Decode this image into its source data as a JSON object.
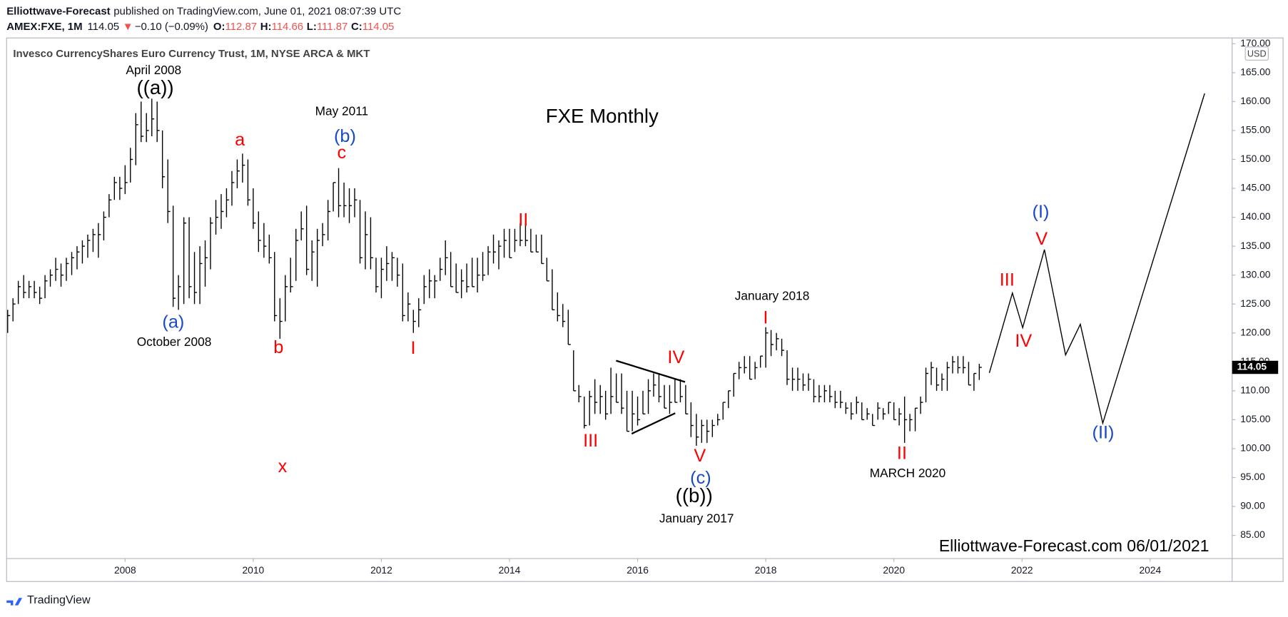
{
  "header": {
    "publisher": "Elliottwave-Forecast",
    "published": "published on TradingView.com, June 01, 2021 08:07:39 UTC",
    "symbol": "AMEX:FXE, 1M",
    "last": "114.05",
    "change_arrow": "▼",
    "change": "−0.10 (−0.09%)",
    "o_label": "O:",
    "open": "112.87",
    "h_label": "H:",
    "high": "114.66",
    "l_label": "L:",
    "low": "111.87",
    "c_label": "C:",
    "close": "114.05"
  },
  "footer": {
    "brand": "TradingView"
  },
  "chart_data": {
    "type": "ohlc",
    "title": "Invesco CurrencyShares Euro Currency Trust, 1M, NYSE ARCA & MKT",
    "watermark": "FXE Monthly",
    "signature": "Elliottwave-Forecast.com 06/01/2021",
    "currency": "USD",
    "color": "#000000",
    "x": [
      2006.167,
      2006.25,
      2006.333,
      2006.417,
      2006.5,
      2006.583,
      2006.667,
      2006.75,
      2006.833,
      2006.917,
      2007,
      2007.083,
      2007.167,
      2007.25,
      2007.333,
      2007.417,
      2007.5,
      2007.583,
      2007.667,
      2007.75,
      2007.833,
      2007.917,
      2008,
      2008.083,
      2008.167,
      2008.25,
      2008.333,
      2008.417,
      2008.5,
      2008.583,
      2008.667,
      2008.75,
      2008.833,
      2008.917,
      2009,
      2009.083,
      2009.167,
      2009.25,
      2009.333,
      2009.417,
      2009.5,
      2009.583,
      2009.667,
      2009.75,
      2009.833,
      2009.917,
      2010,
      2010.083,
      2010.167,
      2010.25,
      2010.333,
      2010.417,
      2010.5,
      2010.583,
      2010.667,
      2010.75,
      2010.833,
      2010.917,
      2011,
      2011.083,
      2011.167,
      2011.25,
      2011.333,
      2011.417,
      2011.5,
      2011.583,
      2011.667,
      2011.75,
      2011.833,
      2011.917,
      2012,
      2012.083,
      2012.167,
      2012.25,
      2012.333,
      2012.417,
      2012.5,
      2012.583,
      2012.667,
      2012.75,
      2012.833,
      2012.917,
      2013,
      2013.083,
      2013.167,
      2013.25,
      2013.333,
      2013.417,
      2013.5,
      2013.583,
      2013.667,
      2013.75,
      2013.833,
      2013.917,
      2014,
      2014.083,
      2014.167,
      2014.25,
      2014.333,
      2014.417,
      2014.5,
      2014.583,
      2014.667,
      2014.75,
      2014.833,
      2014.917,
      2015,
      2015.083,
      2015.167,
      2015.25,
      2015.333,
      2015.417,
      2015.5,
      2015.583,
      2015.667,
      2015.75,
      2015.833,
      2015.917,
      2016,
      2016.083,
      2016.167,
      2016.25,
      2016.333,
      2016.417,
      2016.5,
      2016.583,
      2016.667,
      2016.75,
      2016.833,
      2016.917,
      2017,
      2017.083,
      2017.167,
      2017.25,
      2017.333,
      2017.417,
      2017.5,
      2017.583,
      2017.667,
      2017.75,
      2017.833,
      2017.917,
      2018,
      2018.083,
      2018.167,
      2018.25,
      2018.333,
      2018.417,
      2018.5,
      2018.583,
      2018.667,
      2018.75,
      2018.833,
      2018.917,
      2019,
      2019.083,
      2019.167,
      2019.25,
      2019.333,
      2019.417,
      2019.5,
      2019.583,
      2019.667,
      2019.75,
      2019.833,
      2019.917,
      2020,
      2020.083,
      2020.167,
      2020.25,
      2020.333,
      2020.417,
      2020.5,
      2020.583,
      2020.667,
      2020.75,
      2020.833,
      2020.917,
      2021,
      2021.083,
      2021.167,
      2021.25,
      2021.333
    ],
    "high": [
      124,
      126,
      129,
      130,
      129,
      129,
      128,
      130,
      131,
      133,
      132,
      133,
      134,
      135,
      136,
      137,
      138,
      139,
      141,
      144,
      147,
      147,
      149,
      152,
      158,
      160,
      158,
      160.5,
      160,
      155,
      150,
      142,
      130,
      140,
      140,
      134,
      135,
      136,
      140,
      143,
      144,
      145,
      148,
      150,
      151,
      150,
      145,
      141,
      139,
      137,
      134,
      126,
      130,
      133,
      138,
      141,
      142,
      136,
      138,
      139,
      143,
      146,
      148.5,
      146,
      145,
      145,
      143,
      141,
      140,
      133,
      133,
      135,
      134,
      133,
      132,
      127,
      124,
      126,
      130,
      131,
      130,
      133,
      136,
      134,
      132,
      131,
      132,
      133,
      133,
      134,
      135,
      137,
      136,
      138,
      138,
      138,
      139,
      139,
      138,
      137,
      137,
      133,
      131,
      127,
      125,
      124,
      117,
      111,
      109,
      110,
      112,
      111,
      110,
      114,
      113,
      113,
      110,
      110,
      109,
      110,
      112,
      113,
      113,
      111,
      111,
      112,
      112,
      111,
      108,
      106,
      105,
      105,
      105,
      106,
      108,
      110,
      113,
      115,
      116,
      116,
      115,
      116,
      121,
      120.5,
      120,
      119,
      117,
      114,
      114,
      113,
      113,
      112,
      111,
      111,
      111,
      110,
      110,
      108,
      108,
      109,
      108,
      107,
      106,
      108,
      107,
      108,
      108,
      107,
      109,
      106,
      107,
      109,
      114,
      115,
      114,
      113,
      115,
      116,
      116,
      116,
      115,
      113,
      114.66
    ],
    "low": [
      120,
      122,
      125,
      126,
      126,
      126,
      125,
      126,
      128,
      129,
      128,
      129,
      130,
      131,
      132,
      133,
      134,
      133,
      136,
      140,
      143,
      143,
      144,
      146,
      149,
      153,
      153,
      154,
      153,
      145,
      139,
      124.5,
      124,
      125,
      126,
      125,
      125,
      128,
      131,
      137,
      138,
      140,
      142,
      145,
      146,
      142,
      138,
      134,
      133,
      132,
      122,
      119,
      122,
      127,
      129,
      136,
      130,
      129,
      128,
      135,
      136,
      141,
      140,
      140,
      139,
      140,
      132,
      131,
      131,
      127,
      126,
      129,
      129,
      128,
      122,
      122,
      120,
      121,
      125,
      126,
      126,
      129,
      130,
      128,
      127,
      126,
      127,
      128,
      127,
      129,
      130,
      132,
      131,
      133,
      133,
      134,
      135,
      135,
      134,
      134,
      132,
      129,
      124,
      122,
      121,
      118,
      110,
      108,
      103.5,
      104,
      106,
      106,
      105,
      106,
      108,
      106,
      103,
      103,
      104,
      106,
      106,
      109,
      108,
      107,
      106,
      108,
      108,
      106,
      102,
      100.5,
      101,
      101,
      102,
      104,
      105,
      107,
      109,
      112,
      113,
      112,
      112,
      114,
      114,
      116,
      117,
      116,
      111,
      110,
      110,
      110,
      110,
      108,
      108,
      108,
      108,
      107,
      107,
      106,
      105,
      106,
      105,
      105,
      104,
      105,
      105,
      106,
      105,
      104,
      101,
      103,
      103,
      106,
      108,
      111,
      110,
      110,
      110,
      113,
      113,
      113,
      111,
      110,
      111.87
    ],
    "close": [
      123,
      125,
      128,
      127,
      128,
      127,
      126,
      129,
      130,
      131,
      130,
      132,
      133,
      134,
      135,
      136,
      137,
      137,
      140,
      143,
      146,
      145,
      146,
      150,
      156,
      154,
      155,
      157,
      155,
      147,
      141,
      126,
      128,
      139,
      128,
      127,
      132,
      133,
      139,
      140,
      141,
      143,
      146,
      148,
      149,
      143,
      139,
      136,
      135,
      133,
      123,
      122,
      128,
      128,
      136,
      138,
      131,
      134,
      136,
      137,
      141,
      146,
      142,
      142,
      142,
      143,
      133,
      137,
      133,
      128,
      131,
      132,
      133,
      130,
      123,
      125,
      122,
      124,
      128,
      129,
      129,
      131,
      133,
      128,
      127,
      129,
      128,
      128,
      130,
      130,
      134,
      134,
      135,
      136,
      133,
      136,
      136,
      136,
      134,
      134,
      132,
      129,
      124,
      123,
      122,
      118,
      110,
      109,
      104,
      109,
      108,
      109,
      106,
      109,
      108,
      107,
      103,
      106,
      105,
      106,
      110,
      111,
      109,
      107,
      108,
      108,
      109,
      106,
      104,
      102,
      104,
      103,
      104,
      105,
      108,
      110,
      113,
      114,
      114,
      112,
      114,
      116,
      120,
      118,
      119,
      117,
      112,
      112,
      112,
      111,
      112,
      109,
      109,
      110,
      109,
      108,
      108,
      107,
      106,
      108,
      105,
      106,
      104,
      107,
      106,
      108,
      105,
      106,
      105,
      105,
      107,
      108,
      113,
      114,
      111,
      112,
      114,
      115,
      114,
      114,
      111,
      113,
      114.05
    ],
    "projection": {
      "x": [
        2021.49,
        2021.85,
        2022.01,
        2022.35,
        2022.68,
        2022.91,
        2023.26,
        2024.85
      ],
      "values": [
        113.1,
        126.9,
        120.9,
        134.4,
        116.2,
        121.5,
        104.4,
        161.4
      ]
    },
    "xlim": [
      2006.15,
      2025.28
    ],
    "ylim": [
      81,
      171
    ],
    "xticks": [
      2008,
      2010,
      2012,
      2014,
      2016,
      2018,
      2020,
      2022,
      2024
    ],
    "yticks": [
      {
        "value": 85,
        "label": "85.00"
      },
      {
        "value": 90,
        "label": "90.00"
      },
      {
        "value": 95,
        "label": "95.00"
      },
      {
        "value": 100,
        "label": "100.00"
      },
      {
        "value": 105,
        "label": "105.00"
      },
      {
        "value": 110,
        "label": "110.00"
      },
      {
        "value": 115,
        "label": "115.00"
      },
      {
        "value": 120,
        "label": "120.00"
      },
      {
        "value": 125,
        "label": "125.00"
      },
      {
        "value": 130,
        "label": "130.00"
      },
      {
        "value": 135,
        "label": "135.00"
      },
      {
        "value": 140,
        "label": "140.00"
      },
      {
        "value": 145,
        "label": "145.00"
      },
      {
        "value": 150,
        "label": "150.00"
      },
      {
        "value": 155,
        "label": "155.00"
      },
      {
        "value": 160,
        "label": "160.00"
      },
      {
        "value": 165,
        "label": "165.00"
      },
      {
        "value": 170,
        "label": "170.00"
      }
    ],
    "grid": false,
    "annotations": [
      {
        "text": "April 2008",
        "color": "#000000"
      },
      {
        "text": "((a))",
        "color": "#000000"
      },
      {
        "text": "(a)",
        "color": "#1848cc"
      },
      {
        "text": "October 2008",
        "color": "#000000"
      },
      {
        "text": "a",
        "color": "#ff0000"
      },
      {
        "text": "b",
        "color": "#ff0000"
      },
      {
        "text": "x",
        "color": "#ff0000"
      },
      {
        "text": "May 2011",
        "color": "#000000"
      },
      {
        "text": "(b)",
        "color": "#1848cc"
      },
      {
        "text": "c",
        "color": "#ff0000"
      },
      {
        "text": "II",
        "color": "#ff0000"
      },
      {
        "text": "I",
        "color": "#ff0000"
      },
      {
        "text": "III",
        "color": "#ff0000"
      },
      {
        "text": "IV",
        "color": "#ff0000"
      },
      {
        "text": "V",
        "color": "#ff0000"
      },
      {
        "text": "(c)",
        "color": "#1848cc"
      },
      {
        "text": "((b))",
        "color": "#000000"
      },
      {
        "text": "January 2017",
        "color": "#000000"
      },
      {
        "text": "January 2018",
        "color": "#000000"
      },
      {
        "text": "I",
        "color": "#ff0000"
      },
      {
        "text": "II",
        "color": "#ff0000"
      },
      {
        "text": "MARCH 2020",
        "color": "#000000"
      },
      {
        "text": "III",
        "color": "#ff0000"
      },
      {
        "text": "IV",
        "color": "#ff0000"
      },
      {
        "text": "(I)",
        "color": "#1848cc"
      },
      {
        "text": "V",
        "color": "#ff0000"
      },
      {
        "text": "(II)",
        "color": "#1848cc"
      }
    ]
  }
}
